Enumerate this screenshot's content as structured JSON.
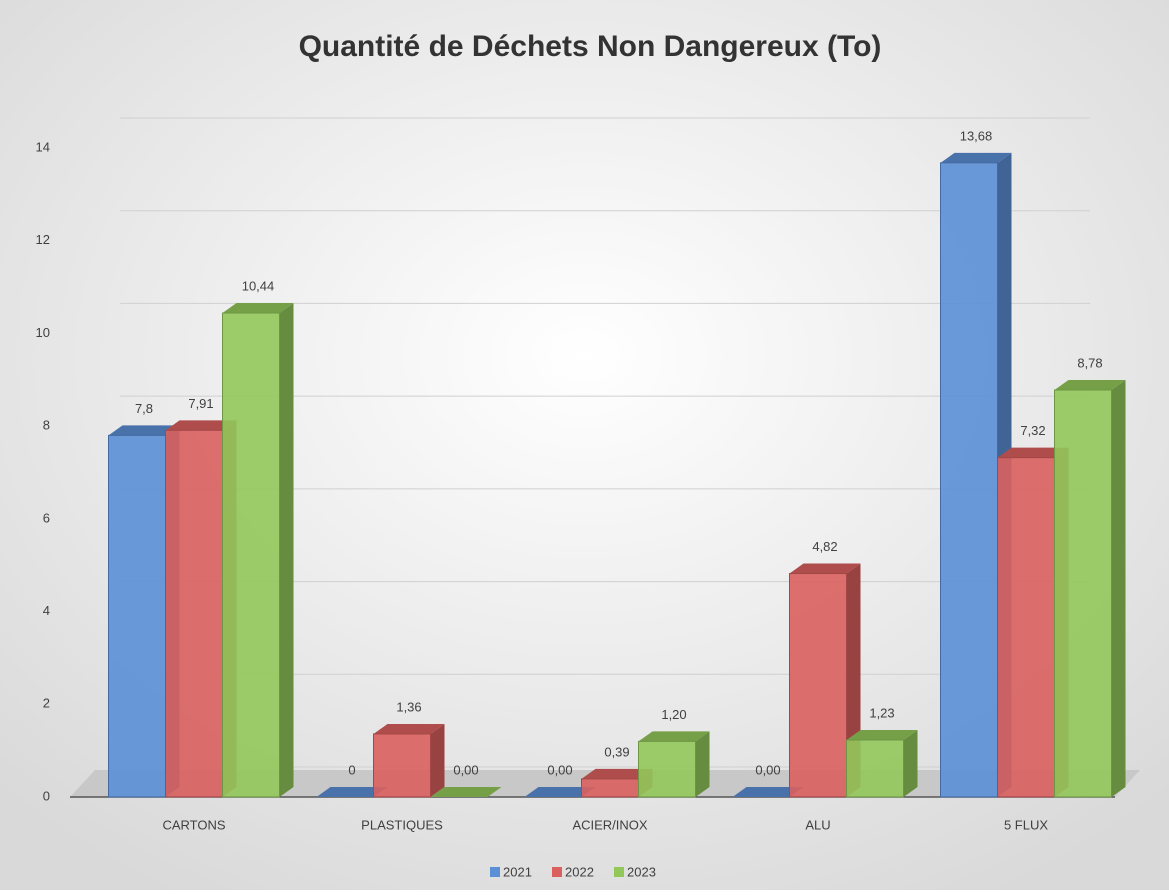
{
  "chart_data": {
    "type": "bar",
    "title": "Quantité de Déchets Non Dangereux (To)",
    "categories": [
      "CARTONS",
      "PLASTIQUES",
      "ACIER/INOX",
      "ALU",
      "5 FLUX"
    ],
    "series": [
      {
        "name": "2021",
        "color": "#5b8fd6",
        "values": [
          7.8,
          0,
          0,
          0,
          13.68
        ],
        "value_labels": [
          "7,8",
          "0",
          "0,00",
          "0,00",
          "13,68"
        ]
      },
      {
        "name": "2022",
        "color": "#d9605e",
        "values": [
          7.91,
          1.36,
          0.39,
          4.82,
          7.32
        ],
        "value_labels": [
          "7,91",
          "1,36",
          "0,39",
          "4,82",
          "7,32"
        ]
      },
      {
        "name": "2023",
        "color": "#92c85a",
        "values": [
          10.44,
          0,
          1.2,
          1.23,
          8.78
        ],
        "value_labels": [
          "10,44",
          "0,00",
          "1,20",
          "1,23",
          "8,78"
        ]
      }
    ],
    "ylim": [
      0,
      14
    ],
    "yticks": [
      0,
      2,
      4,
      6,
      8,
      10,
      12,
      14
    ],
    "grid": true,
    "legend": "bottom"
  }
}
